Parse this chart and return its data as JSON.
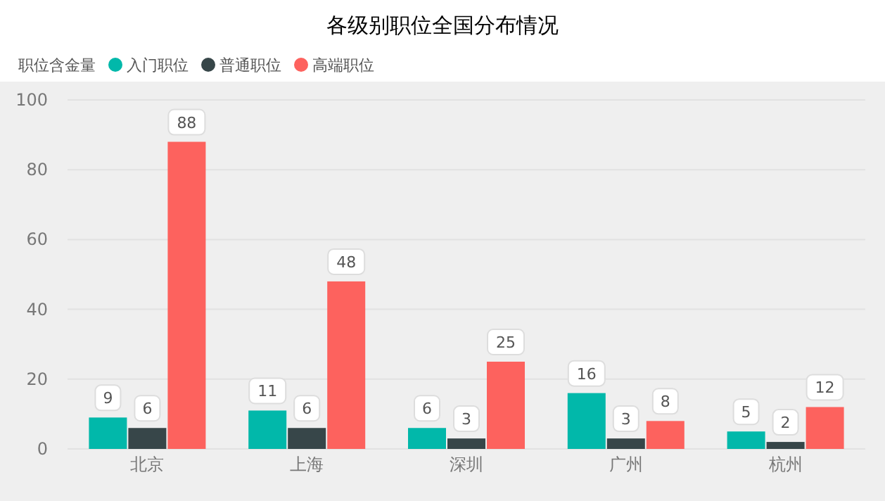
{
  "chart_data": {
    "type": "bar",
    "title": "各级别职位全国分布情况",
    "legend_title": "职位含金量",
    "legend": "top left",
    "grid": "y",
    "data_labels": true,
    "categories": [
      "北京",
      "上海",
      "深圳",
      "广州",
      "杭州"
    ],
    "ylim": [
      0,
      100
    ],
    "yticks": [
      0,
      20,
      40,
      60,
      80,
      100
    ],
    "series": [
      {
        "name": "入门职位",
        "color": "#01b8aa",
        "values": [
          9,
          11,
          6,
          16,
          5
        ]
      },
      {
        "name": "普通职位",
        "color": "#374649",
        "values": [
          6,
          6,
          3,
          3,
          2
        ]
      },
      {
        "name": "高端职位",
        "color": "#fd625e",
        "values": [
          88,
          48,
          25,
          8,
          12
        ]
      }
    ]
  }
}
